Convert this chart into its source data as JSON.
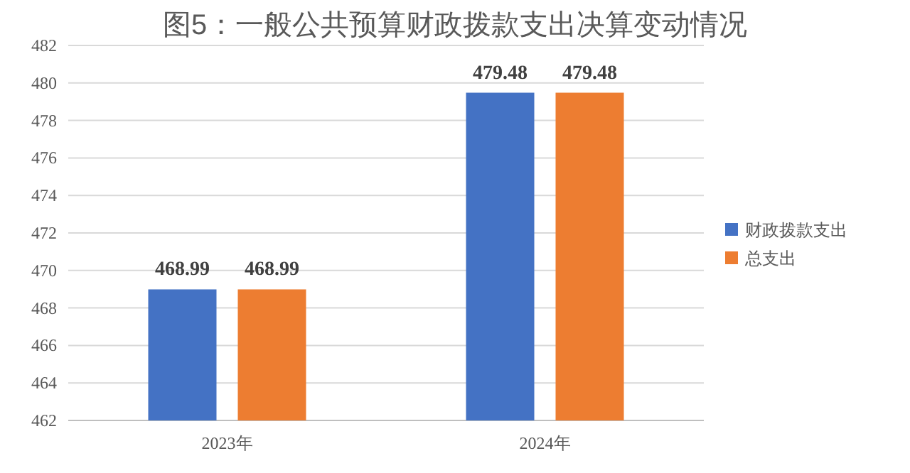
{
  "chart_data": {
    "type": "bar",
    "title": "图5：一般公共预算财政拨款支出决算变动情况",
    "categories": [
      "2023年",
      "2024年"
    ],
    "series": [
      {
        "name": "财政拨款支出",
        "color": "#4472c4",
        "values": [
          468.99,
          479.48
        ]
      },
      {
        "name": "总支出",
        "color": "#ed7d31",
        "values": [
          468.99,
          479.48
        ]
      }
    ],
    "ylim": [
      462,
      482
    ],
    "yticks": [
      462,
      464,
      466,
      468,
      470,
      472,
      474,
      476,
      478,
      480,
      482
    ],
    "grid": "y",
    "legend": "right",
    "data_labels": true
  }
}
